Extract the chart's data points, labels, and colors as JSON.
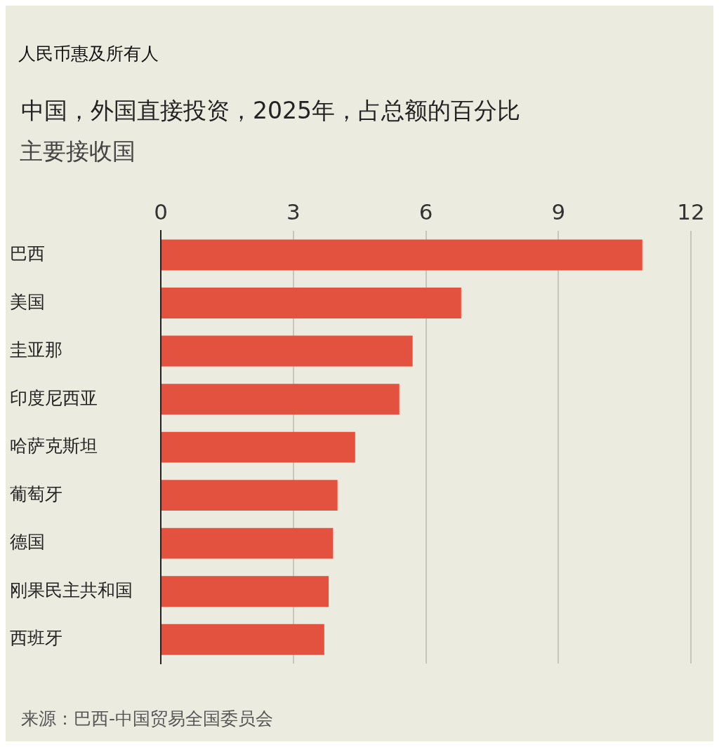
{
  "chart_data": {
    "type": "bar",
    "orientation": "horizontal",
    "title": "中国，外国直接投资，2025年，占总额的百分比",
    "subtitle": "主要接收国",
    "categories": [
      "巴西",
      "美国",
      "圭亚那",
      "印度尼西亚",
      "哈萨克斯坦",
      "葡萄牙",
      "德国",
      "刚果民主共和国",
      "西班牙"
    ],
    "values": [
      10.9,
      6.8,
      5.7,
      5.4,
      4.4,
      4.0,
      3.9,
      3.8,
      3.7
    ],
    "color": "#e3523e",
    "xlim": [
      0,
      12
    ],
    "xticks": [
      0,
      3,
      6,
      9,
      12
    ],
    "grid": "x",
    "legend": false,
    "annotations": [
      "人民币惠及所有人",
      "来源：巴西-中国贸易全国委员会"
    ]
  }
}
